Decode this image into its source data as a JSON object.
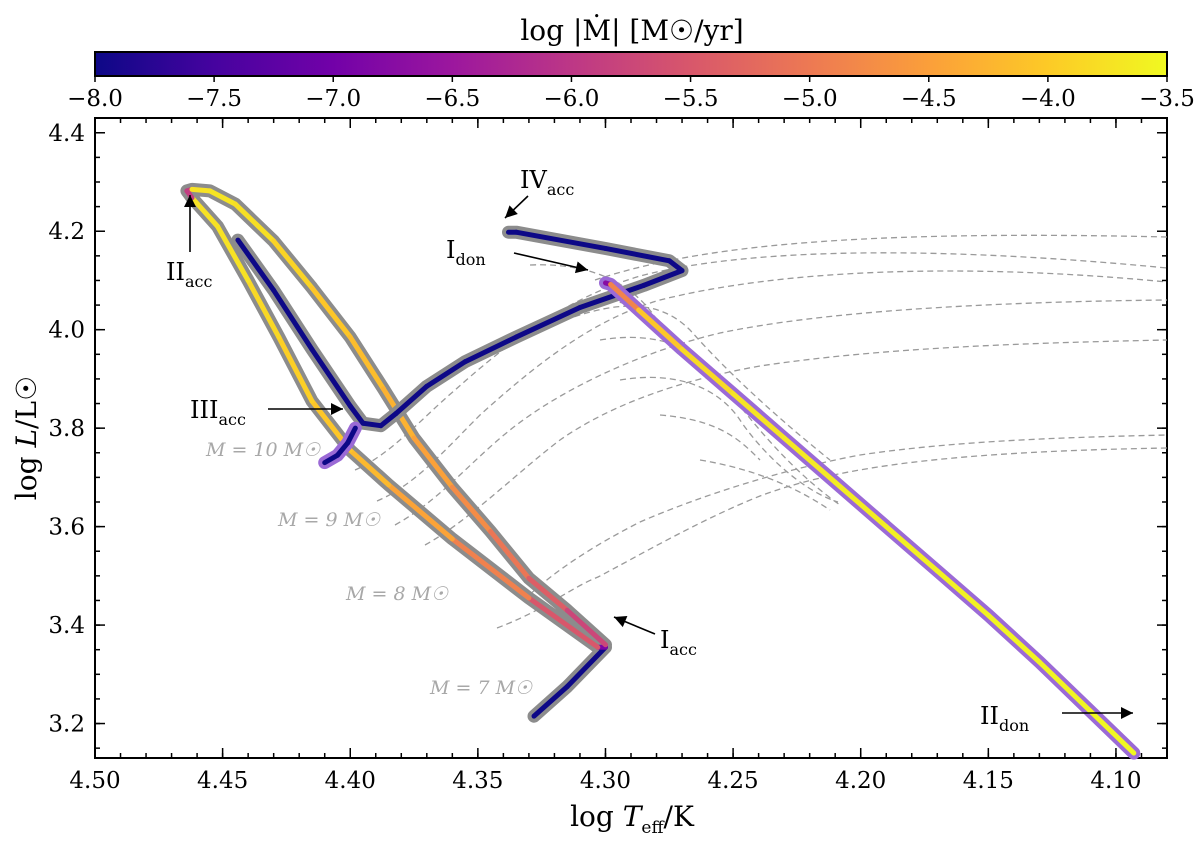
{
  "chart_data": {
    "type": "line",
    "xlabel": "log T_eff/K",
    "ylabel": "log L/L☉",
    "xlim": [
      4.5,
      4.08
    ],
    "ylim": [
      3.13,
      4.43
    ],
    "xticks": [
      4.5,
      4.45,
      4.4,
      4.35,
      4.3,
      4.25,
      4.2,
      4.15,
      4.1
    ],
    "xtick_labels": [
      "4.50",
      "4.45",
      "4.40",
      "4.35",
      "4.30",
      "4.25",
      "4.20",
      "4.15",
      "4.10"
    ],
    "yticks": [
      3.2,
      3.4,
      3.6,
      3.8,
      4.0,
      4.2,
      4.4
    ],
    "ytick_labels": [
      "3.2",
      "3.4",
      "3.6",
      "3.8",
      "4.0",
      "4.2",
      "4.4"
    ],
    "colorbar": {
      "label": "log |Ṁ| [M☉/yr]",
      "range": [
        -8.0,
        -3.5
      ],
      "ticks": [
        -8.0,
        -7.5,
        -7.0,
        -6.5,
        -6.0,
        -5.5,
        -5.0,
        -4.5,
        -4.0,
        -3.5
      ],
      "tick_labels": [
        "−8.0",
        "−7.5",
        "−7.0",
        "−6.5",
        "−6.0",
        "−5.5",
        "−5.0",
        "−4.5",
        "−4.0",
        "−3.5"
      ],
      "colormap": [
        "#0d0887",
        "#46039f",
        "#7201a8",
        "#9c179e",
        "#bd3786",
        "#d8576b",
        "#ed7953",
        "#fb9f3a",
        "#fdca26",
        "#f0f921"
      ]
    },
    "series": [
      {
        "name": "accretor",
        "outline_color": "#8c8c8c",
        "points": [
          [
            4.328,
            3.215,
            -8.0
          ],
          [
            4.315,
            3.275,
            -8.0
          ],
          [
            4.3,
            3.355,
            -8.0
          ],
          [
            4.303,
            3.355,
            -5.8
          ],
          [
            4.33,
            3.455,
            -5.2
          ],
          [
            4.36,
            3.575,
            -4.6
          ],
          [
            4.385,
            3.685,
            -4.3
          ],
          [
            4.4,
            3.755,
            -4.1
          ],
          [
            4.415,
            3.855,
            -4.0
          ],
          [
            4.428,
            3.985,
            -3.9
          ],
          [
            4.44,
            4.1,
            -3.8
          ],
          [
            4.452,
            4.21,
            -3.7
          ],
          [
            4.462,
            4.268,
            -3.8
          ],
          [
            4.464,
            4.282,
            -8.0
          ],
          [
            4.462,
            4.285,
            -3.8
          ],
          [
            4.455,
            4.282,
            -3.7
          ],
          [
            4.445,
            4.255,
            -3.75
          ],
          [
            4.43,
            4.18,
            -3.8
          ],
          [
            4.415,
            4.085,
            -4.0
          ],
          [
            4.4,
            3.985,
            -4.1
          ],
          [
            4.387,
            3.88,
            -4.2
          ],
          [
            4.375,
            3.78,
            -4.35
          ],
          [
            4.36,
            3.68,
            -4.6
          ],
          [
            4.345,
            3.59,
            -4.9
          ],
          [
            4.33,
            3.495,
            -5.2
          ],
          [
            4.315,
            3.43,
            -5.6
          ],
          [
            4.3,
            3.36,
            -5.9
          ]
        ]
      },
      {
        "name": "accretor-late",
        "outline_color": "#8c8c8c",
        "points": [
          [
            4.444,
            4.182,
            -8.0
          ],
          [
            4.43,
            4.08,
            -8.0
          ],
          [
            4.415,
            3.96,
            -8.0
          ],
          [
            4.4,
            3.845,
            -8.0
          ],
          [
            4.395,
            3.81,
            -8.0
          ],
          [
            4.388,
            3.805,
            -8.0
          ],
          [
            4.382,
            3.83,
            -8.0
          ],
          [
            4.37,
            3.885,
            -8.0
          ],
          [
            4.355,
            3.935,
            -8.0
          ],
          [
            4.335,
            3.985,
            -8.0
          ],
          [
            4.31,
            4.045,
            -8.0
          ],
          [
            4.285,
            4.09,
            -8.0
          ],
          [
            4.27,
            4.12,
            -8.0
          ],
          [
            4.275,
            4.14,
            -8.0
          ],
          [
            4.3,
            4.165,
            -8.0
          ],
          [
            4.335,
            4.198,
            -8.0
          ],
          [
            4.338,
            4.198,
            -8.0
          ]
        ]
      },
      {
        "name": "accretor-tail",
        "outline_color": "#9b6ad6",
        "points": [
          [
            4.398,
            3.8,
            -8.0
          ],
          [
            4.401,
            3.77,
            -8.0
          ],
          [
            4.405,
            3.745,
            -8.0
          ],
          [
            4.41,
            3.73,
            -8.0
          ]
        ]
      },
      {
        "name": "donor",
        "outline_color": "#9b6ad6",
        "points": [
          [
            4.3,
            4.095,
            -8.0
          ],
          [
            4.298,
            4.092,
            -5.5
          ],
          [
            4.287,
            4.04,
            -4.2
          ],
          [
            4.27,
            3.96,
            -3.9
          ],
          [
            4.25,
            3.87,
            -3.75
          ],
          [
            4.23,
            3.78,
            -3.7
          ],
          [
            4.21,
            3.69,
            -3.65
          ],
          [
            4.19,
            3.6,
            -3.6
          ],
          [
            4.17,
            3.51,
            -3.6
          ],
          [
            4.15,
            3.42,
            -3.55
          ],
          [
            4.13,
            3.325,
            -3.55
          ],
          [
            4.11,
            3.225,
            -3.55
          ],
          [
            4.093,
            3.14,
            -3.5
          ]
        ]
      }
    ],
    "reference_tracks": [
      {
        "label": "M = 7 M☉"
      },
      {
        "label": "M = 8 M☉"
      },
      {
        "label": "M = 9 M☉"
      },
      {
        "label": "M = 10 M☉"
      }
    ],
    "annotations": [
      {
        "main": "IV",
        "sub": "acc",
        "x": 4.338,
        "y": 4.2
      },
      {
        "main": "I",
        "sub": "don",
        "x": 4.3,
        "y": 4.093
      },
      {
        "main": "II",
        "sub": "acc",
        "x": 4.463,
        "y": 4.28
      },
      {
        "main": "III",
        "sub": "acc",
        "x": 4.394,
        "y": 3.812
      },
      {
        "main": "I",
        "sub": "acc",
        "x": 4.3,
        "y": 3.352
      },
      {
        "main": "II",
        "sub": "don",
        "x": 4.093,
        "y": 3.142
      }
    ]
  }
}
